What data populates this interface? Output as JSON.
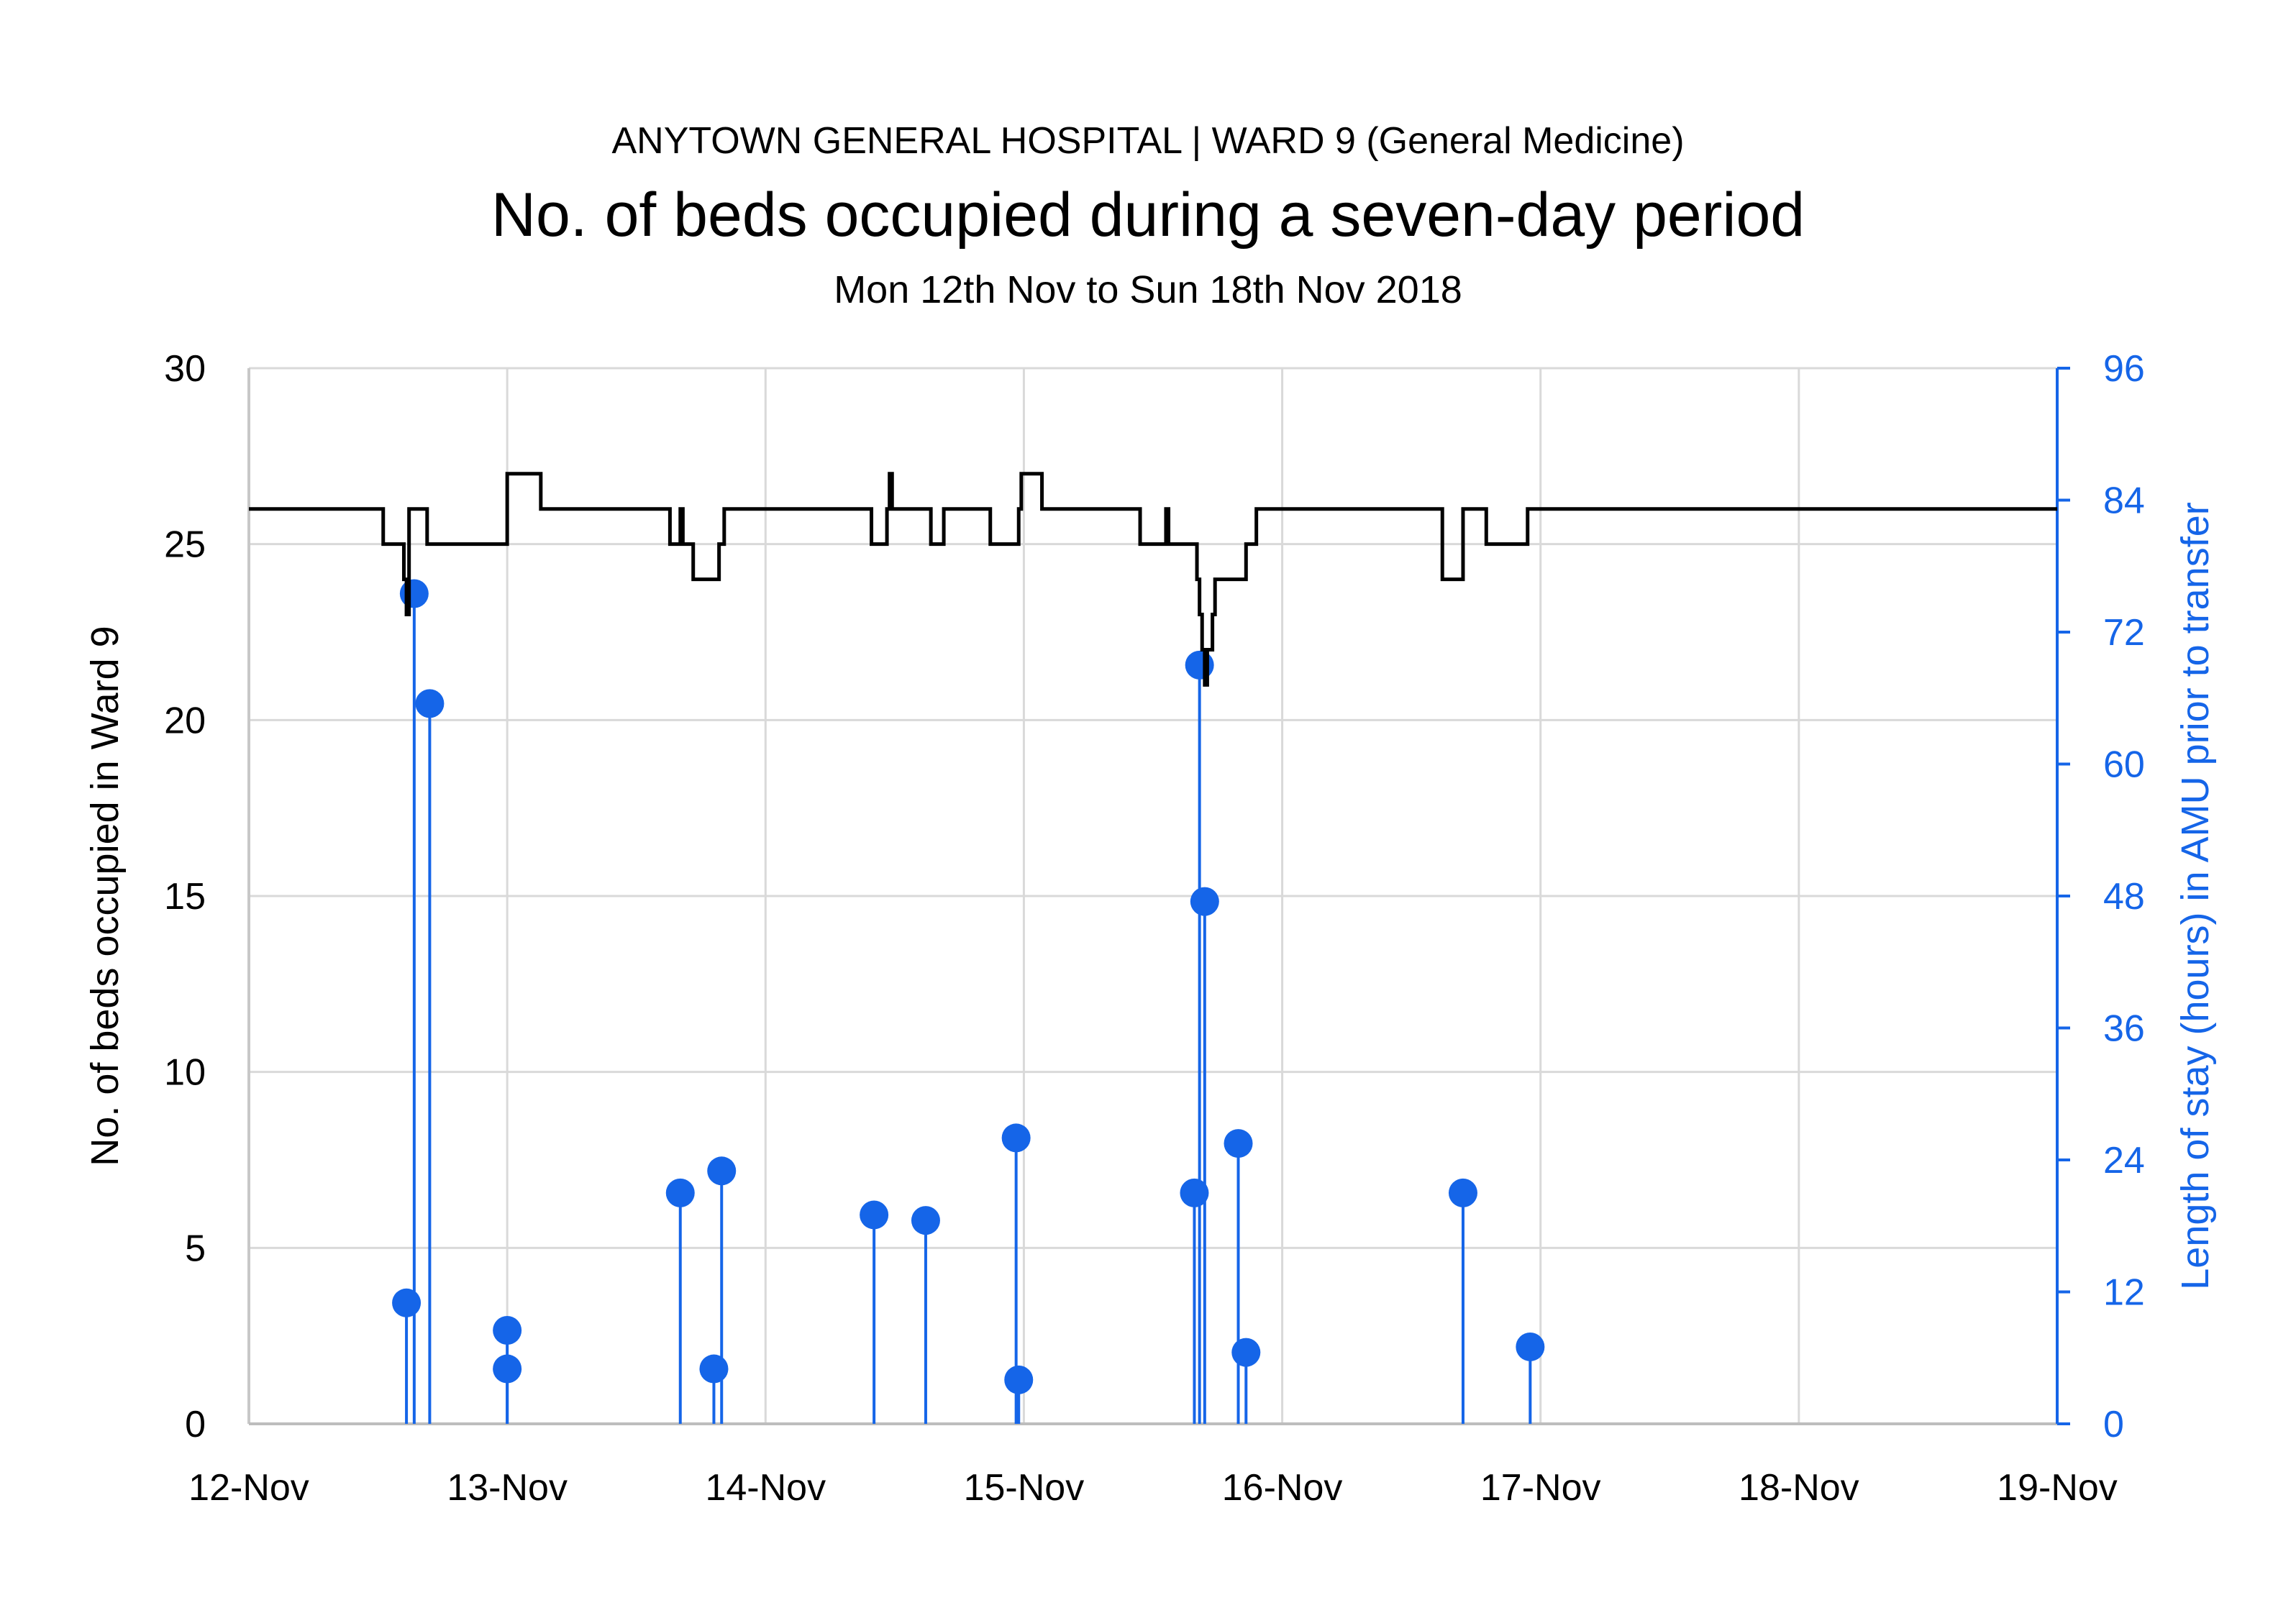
{
  "header": {
    "supertitle": "ANYTOWN GENERAL HOSPITAL | WARD 9 (General Medicine)",
    "title": "No. of beds occupied during a seven-day period",
    "subtitle": "Mon 12th Nov to Sun 18th Nov 2018"
  },
  "chart_data": {
    "type": "line",
    "x_axis": {
      "unit": "days since 12-Nov 00:00",
      "range": [
        0,
        7
      ],
      "ticks": [
        {
          "value": 0,
          "label": "12-Nov"
        },
        {
          "value": 1,
          "label": "13-Nov"
        },
        {
          "value": 2,
          "label": "14-Nov"
        },
        {
          "value": 3,
          "label": "15-Nov"
        },
        {
          "value": 4,
          "label": "16-Nov"
        },
        {
          "value": 5,
          "label": "17-Nov"
        },
        {
          "value": 6,
          "label": "18-Nov"
        },
        {
          "value": 7,
          "label": "19-Nov"
        }
      ]
    },
    "y_left": {
      "label": "No. of beds occupied in Ward 9",
      "range": [
        0,
        30
      ],
      "ticks": [
        0,
        5,
        10,
        15,
        20,
        25,
        30
      ]
    },
    "y_right": {
      "label": "Length of stay (hours) in AMU prior to transfer",
      "range": [
        0,
        96
      ],
      "ticks": [
        0,
        12,
        24,
        36,
        48,
        60,
        72,
        84,
        96
      ],
      "color": "#1565e8"
    },
    "grid": true,
    "series": [
      {
        "name": "Beds occupied",
        "axis": "left",
        "type": "step",
        "color": "#000000",
        "points": [
          [
            0.0,
            26
          ],
          [
            0.52,
            25
          ],
          [
            0.6,
            24
          ],
          [
            0.61,
            23
          ],
          [
            0.62,
            26
          ],
          [
            0.69,
            25
          ],
          [
            1.0,
            27
          ],
          [
            1.13,
            26
          ],
          [
            1.63,
            25
          ],
          [
            1.67,
            26
          ],
          [
            1.68,
            25
          ],
          [
            1.72,
            24
          ],
          [
            1.82,
            25
          ],
          [
            1.84,
            26
          ],
          [
            2.41,
            25
          ],
          [
            2.47,
            26
          ],
          [
            2.48,
            27
          ],
          [
            2.49,
            26
          ],
          [
            2.64,
            25
          ],
          [
            2.69,
            26
          ],
          [
            2.87,
            25
          ],
          [
            2.98,
            26
          ],
          [
            2.99,
            27
          ],
          [
            3.07,
            26
          ],
          [
            3.45,
            25
          ],
          [
            3.55,
            26
          ],
          [
            3.56,
            25
          ],
          [
            3.67,
            24
          ],
          [
            3.68,
            23
          ],
          [
            3.69,
            22
          ],
          [
            3.7,
            21
          ],
          [
            3.71,
            22
          ],
          [
            3.73,
            23
          ],
          [
            3.74,
            24
          ],
          [
            3.86,
            25
          ],
          [
            3.9,
            26
          ],
          [
            4.62,
            24
          ],
          [
            4.7,
            26
          ],
          [
            4.79,
            25
          ],
          [
            4.95,
            26
          ],
          [
            7.0,
            26
          ]
        ]
      },
      {
        "name": "Length of stay in AMU",
        "axis": "right",
        "type": "stem",
        "color": "#1565e8",
        "points": [
          [
            0.61,
            11
          ],
          [
            0.64,
            75.5
          ],
          [
            0.7,
            65.5
          ],
          [
            1.0,
            8.5
          ],
          [
            1.0,
            5
          ],
          [
            1.67,
            21
          ],
          [
            1.8,
            5
          ],
          [
            1.83,
            23
          ],
          [
            2.42,
            19
          ],
          [
            2.62,
            18.5
          ],
          [
            2.97,
            26
          ],
          [
            2.98,
            4
          ],
          [
            3.66,
            21
          ],
          [
            3.68,
            69
          ],
          [
            3.7,
            47.5
          ],
          [
            3.83,
            25.5
          ],
          [
            3.86,
            6.5
          ],
          [
            4.7,
            21
          ],
          [
            4.96,
            7
          ]
        ]
      }
    ]
  }
}
